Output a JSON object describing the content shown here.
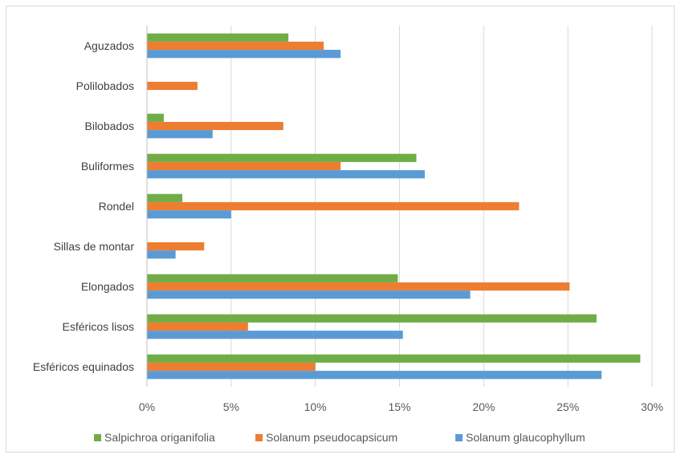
{
  "chart_data": {
    "type": "bar",
    "orientation": "horizontal",
    "categories": [
      "Aguzados",
      "Polilobados",
      "Bilobados",
      "Buliformes",
      "Rondel",
      "Sillas de montar",
      "Elongados",
      "Esféricos lisos",
      "Esféricos equinados"
    ],
    "series": [
      {
        "name": "Salpichroa origanifolia",
        "color": "#70ad47",
        "values": [
          8.4,
          0,
          1.0,
          16.0,
          2.1,
          0,
          14.9,
          26.7,
          29.3
        ]
      },
      {
        "name": "Solanum pseudocapsicum",
        "color": "#ed7d31",
        "values": [
          10.5,
          3.0,
          8.1,
          11.5,
          22.1,
          3.4,
          25.1,
          6.0,
          10.0
        ]
      },
      {
        "name": "Solanum glaucophyllum",
        "color": "#5b9bd5",
        "values": [
          11.5,
          0,
          3.9,
          16.5,
          5.0,
          1.7,
          19.2,
          15.2,
          27.0
        ]
      }
    ],
    "xlim": [
      0,
      30
    ],
    "xticks": [
      "0%",
      "5%",
      "10%",
      "15%",
      "20%",
      "25%",
      "30%"
    ],
    "xtick_values": [
      0,
      5,
      10,
      15,
      20,
      25,
      30
    ],
    "grid": true,
    "legend_position": "bottom"
  }
}
